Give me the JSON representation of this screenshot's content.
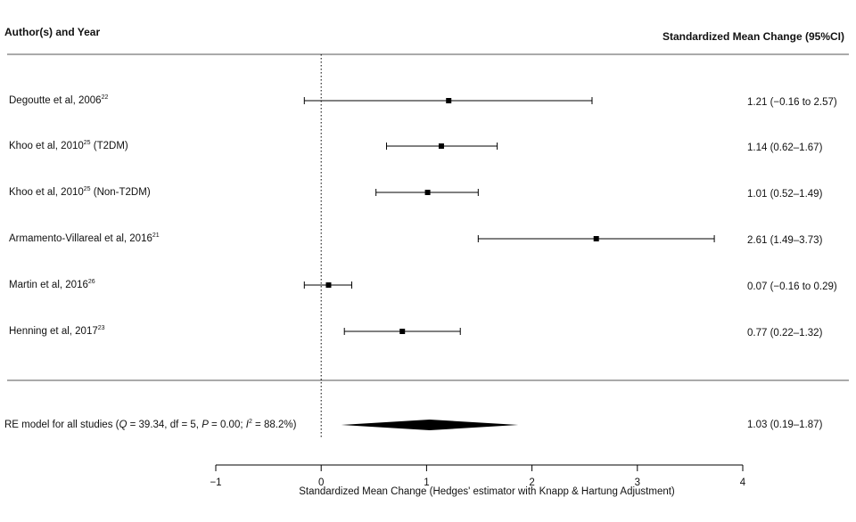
{
  "chart_data": {
    "type": "forest",
    "left_header": "Author(s) and Year",
    "right_header": "Standardized Mean Change (95%CI)",
    "x_label": "Standardized Mean Change (Hedges' estimator with Knapp & Hartung Adjustment)",
    "xlim": [
      -1,
      4
    ],
    "xticks": [
      {
        "value": -1,
        "label": "−1"
      },
      0,
      1,
      2,
      3,
      4
    ],
    "reference_line": 0,
    "studies": [
      {
        "name": "Degoutte et al, 2006",
        "ref": "22",
        "estimate": 1.21,
        "lower": -0.16,
        "upper": 2.57,
        "value_label": "1.21 (−0.16 to 2.57)"
      },
      {
        "name": "Khoo et al, 2010",
        "ref": "25",
        "suffix": " (T2DM)",
        "estimate": 1.14,
        "lower": 0.62,
        "upper": 1.67,
        "value_label": "1.14 (0.62–1.67)"
      },
      {
        "name": "Khoo et al, 2010",
        "ref": "25",
        "suffix": " (Non-T2DM)",
        "estimate": 1.01,
        "lower": 0.52,
        "upper": 1.49,
        "value_label": "1.01 (0.52–1.49)"
      },
      {
        "name": "Armamento-Villareal et al, 2016",
        "ref": "21",
        "estimate": 2.61,
        "lower": 1.49,
        "upper": 3.73,
        "value_label": "2.61 (1.49–3.73)"
      },
      {
        "name": "Martin et al, 2016",
        "ref": "26",
        "estimate": 0.07,
        "lower": -0.16,
        "upper": 0.29,
        "value_label": "0.07 (−0.16 to 0.29)"
      },
      {
        "name": "Henning et al, 2017",
        "ref": "23",
        "estimate": 0.77,
        "lower": 0.22,
        "upper": 1.32,
        "value_label": "0.77 (0.22–1.32)"
      }
    ],
    "summary": {
      "label_parts": [
        {
          "text": "RE model for all studies ("
        },
        {
          "text": "Q",
          "style": "italic"
        },
        {
          "text": " = 39.34, df = 5, "
        },
        {
          "text": "P",
          "style": "italic"
        },
        {
          "text": " = 0.00; "
        },
        {
          "text": "I",
          "style": "italic"
        },
        {
          "text": "2",
          "style": "sup"
        },
        {
          "text": " = 88.2%)"
        }
      ],
      "estimate": 1.03,
      "lower": 0.19,
      "upper": 1.87,
      "value_label": "1.03 (0.19–1.87)"
    },
    "color": "#000000"
  }
}
